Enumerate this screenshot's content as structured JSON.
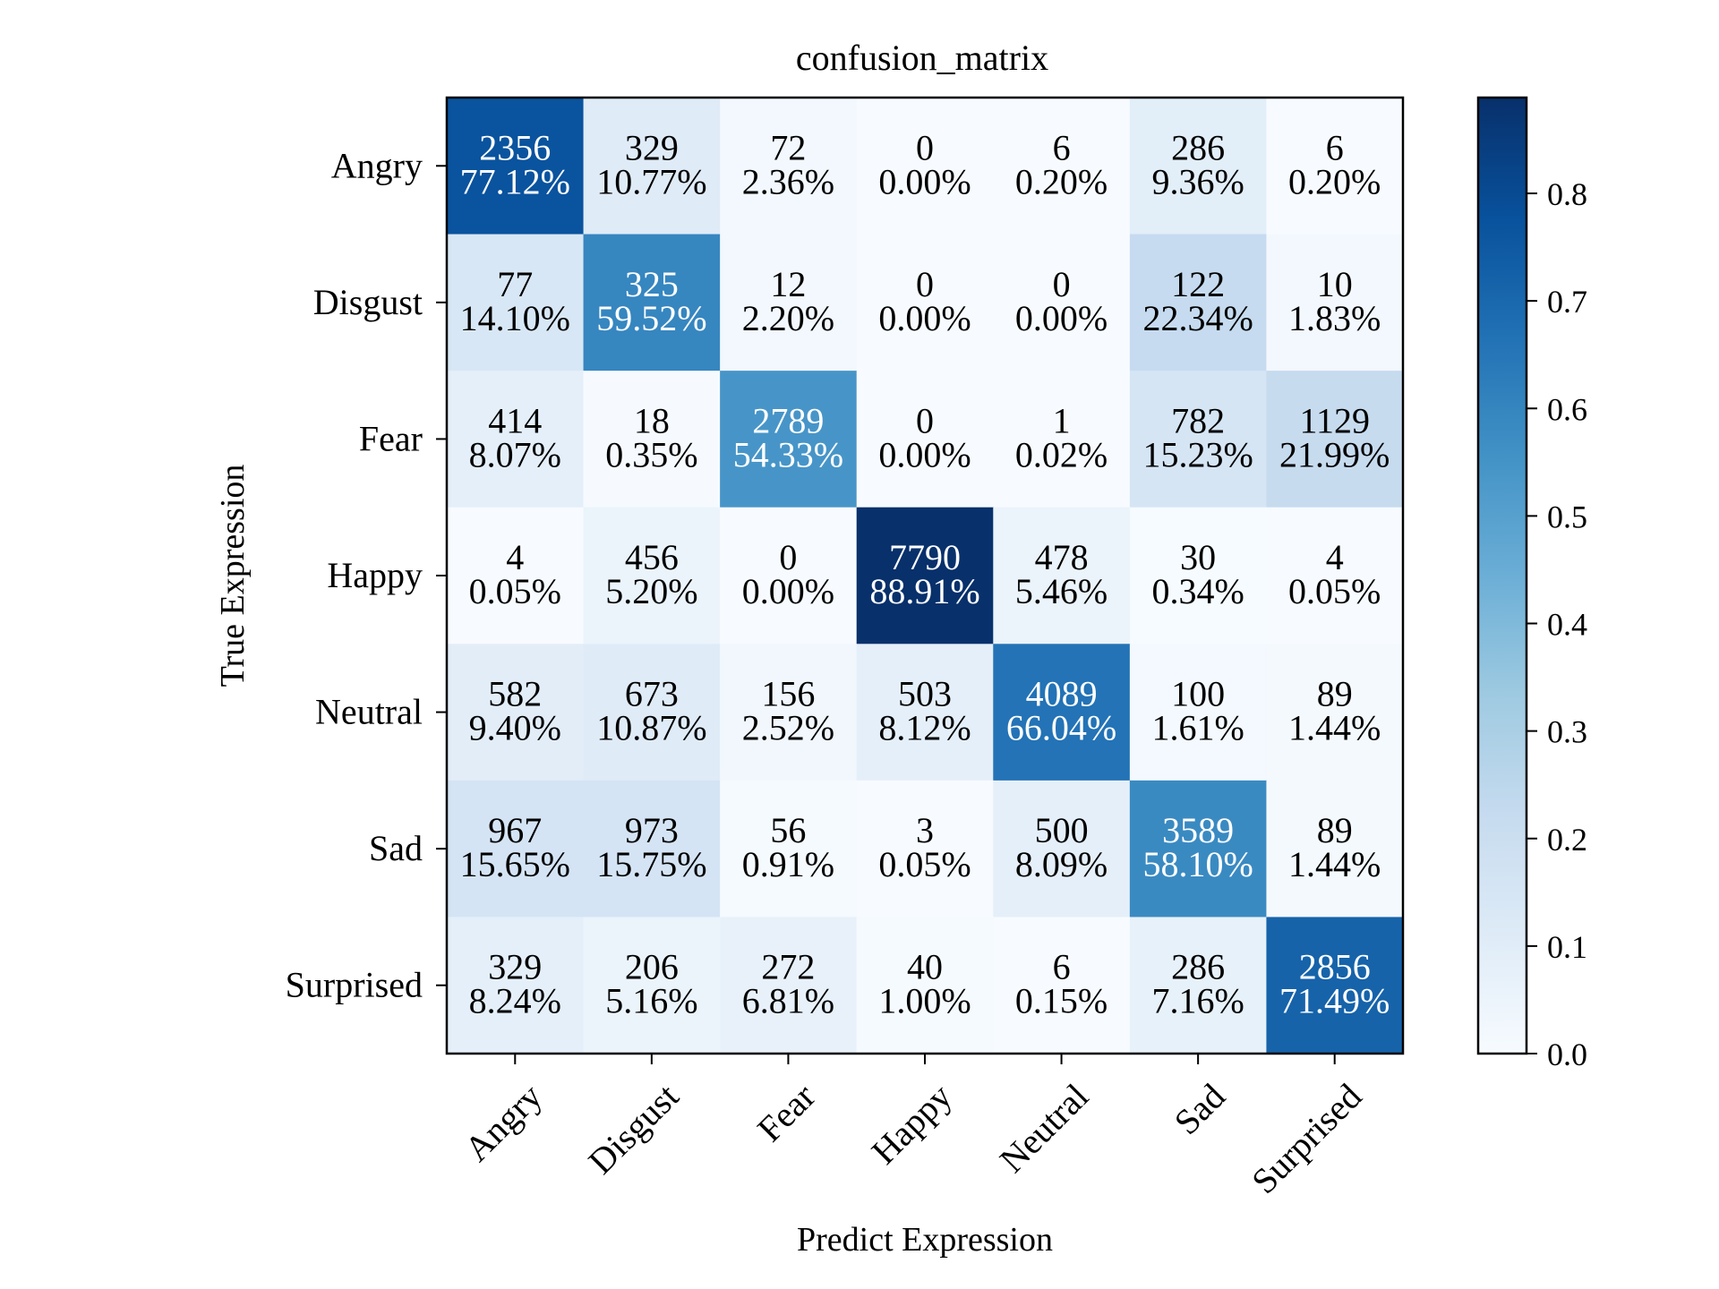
{
  "chart_data": {
    "type": "heatmap",
    "title": "confusion_matrix",
    "xlabel": "Predict Expression",
    "ylabel": "True Expression",
    "x_categories": [
      "Angry",
      "Disgust",
      "Fear",
      "Happy",
      "Neutral",
      "Sad",
      "Surprised"
    ],
    "y_categories": [
      "Angry",
      "Disgust",
      "Fear",
      "Happy",
      "Neutral",
      "Sad",
      "Surprised"
    ],
    "counts": [
      [
        2356,
        329,
        72,
        0,
        6,
        286,
        6
      ],
      [
        77,
        325,
        12,
        0,
        0,
        122,
        10
      ],
      [
        414,
        18,
        2789,
        0,
        1,
        782,
        1129
      ],
      [
        4,
        456,
        0,
        7790,
        478,
        30,
        4
      ],
      [
        582,
        673,
        156,
        503,
        4089,
        100,
        89
      ],
      [
        967,
        973,
        56,
        3,
        500,
        3589,
        89
      ],
      [
        329,
        206,
        272,
        40,
        6,
        286,
        2856
      ]
    ],
    "percentages": [
      [
        "77.12%",
        "10.77%",
        "2.36%",
        "0.00%",
        "0.20%",
        "9.36%",
        "0.20%"
      ],
      [
        "14.10%",
        "59.52%",
        "2.20%",
        "0.00%",
        "0.00%",
        "22.34%",
        "1.83%"
      ],
      [
        "8.07%",
        "0.35%",
        "54.33%",
        "0.00%",
        "0.02%",
        "15.23%",
        "21.99%"
      ],
      [
        "0.05%",
        "5.20%",
        "0.00%",
        "88.91%",
        "5.46%",
        "0.34%",
        "0.05%"
      ],
      [
        "9.40%",
        "10.87%",
        "2.52%",
        "8.12%",
        "66.04%",
        "1.61%",
        "1.44%"
      ],
      [
        "15.65%",
        "15.75%",
        "0.91%",
        "0.05%",
        "8.09%",
        "58.10%",
        "1.44%"
      ],
      [
        "8.24%",
        "5.16%",
        "6.81%",
        "1.00%",
        "0.15%",
        "7.16%",
        "71.49%"
      ]
    ],
    "colorbar": {
      "range": [
        0,
        0.8891
      ],
      "ticks": [
        "0.0",
        "0.1",
        "0.2",
        "0.3",
        "0.4",
        "0.5",
        "0.6",
        "0.7",
        "0.8"
      ]
    },
    "colormap": "Blues",
    "grid": false
  }
}
